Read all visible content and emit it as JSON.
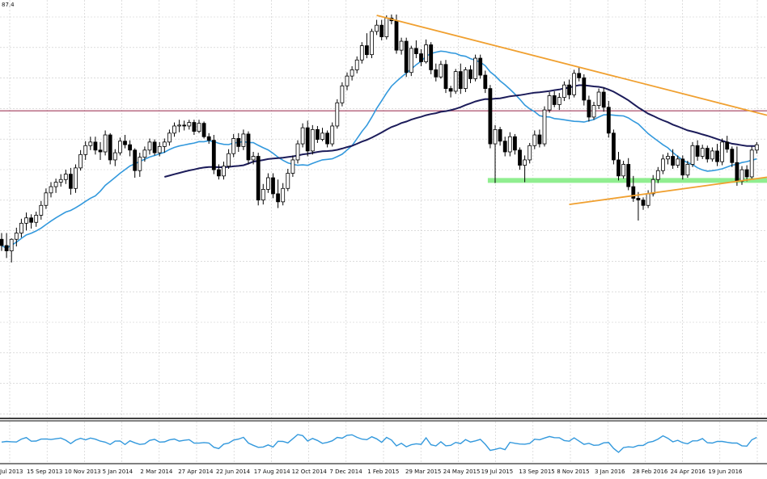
{
  "chart_data": {
    "type": "candlestick",
    "timeframe": "weekly",
    "header_label": "87.4",
    "x_tick_labels": [
      "Jul 2013",
      "15 Sep 2013",
      "10 Nov 2013",
      "5 Jan 2014",
      "2 Mar 2014",
      "27 Apr 2014",
      "22 Jun 2014",
      "17 Aug 2014",
      "12 Oct 2014",
      "7 Dec 2014",
      "1 Feb 2015",
      "29 Mar 2015",
      "24 May 2015",
      "19 Jul 2015",
      "13 Sep 2015",
      "8 Nov 2015",
      "3 Jan 2016",
      "28 Feb 2016",
      "24 Apr 2016",
      "19 Jun 2016"
    ],
    "ylim": [
      56,
      102
    ],
    "grid": true,
    "candles": [
      [
        75.9,
        76.6,
        74.6,
        75.2
      ],
      [
        75.2,
        76.6,
        73.8,
        74.6
      ],
      [
        74.6,
        76.0,
        73.3,
        75.9
      ],
      [
        75.9,
        77.2,
        75.1,
        76.6
      ],
      [
        76.6,
        78.2,
        76.1,
        77.7
      ],
      [
        77.7,
        78.9,
        76.9,
        78.3
      ],
      [
        78.3,
        78.7,
        77.1,
        77.8
      ],
      [
        77.8,
        79.0,
        77.3,
        78.6
      ],
      [
        78.6,
        80.2,
        78.1,
        79.7
      ],
      [
        79.7,
        81.6,
        79.3,
        81.1
      ],
      [
        81.1,
        82.3,
        80.6,
        81.8
      ],
      [
        81.8,
        82.7,
        81.1,
        82.3
      ],
      [
        82.3,
        83.2,
        81.8,
        82.6
      ],
      [
        82.6,
        83.7,
        82.1,
        83.2
      ],
      [
        83.2,
        83.9,
        80.9,
        81.6
      ],
      [
        81.6,
        84.3,
        81.1,
        83.9
      ],
      [
        83.9,
        85.9,
        83.6,
        85.4
      ],
      [
        85.4,
        86.9,
        84.8,
        86.4
      ],
      [
        86.4,
        87.4,
        85.9,
        86.8
      ],
      [
        86.8,
        87.4,
        85.4,
        85.9
      ],
      [
        85.9,
        86.8,
        84.8,
        85.7
      ],
      [
        85.7,
        88.1,
        85.3,
        87.6
      ],
      [
        87.6,
        87.8,
        84.3,
        84.8
      ],
      [
        84.8,
        86.0,
        84.1,
        85.6
      ],
      [
        85.6,
        87.3,
        85.3,
        86.9
      ],
      [
        86.9,
        87.6,
        86.1,
        86.5
      ],
      [
        86.5,
        87.0,
        85.2,
        85.9
      ],
      [
        85.9,
        86.1,
        82.8,
        83.6
      ],
      [
        83.6,
        85.6,
        82.9,
        85.1
      ],
      [
        85.1,
        86.3,
        84.6,
        85.9
      ],
      [
        85.9,
        87.2,
        85.4,
        86.8
      ],
      [
        86.8,
        87.1,
        85.3,
        85.6
      ],
      [
        85.6,
        86.8,
        85.2,
        86.3
      ],
      [
        86.3,
        87.2,
        85.6,
        86.8
      ],
      [
        86.8,
        88.2,
        86.4,
        87.8
      ],
      [
        87.8,
        89.0,
        87.4,
        88.6
      ],
      [
        88.6,
        89.3,
        87.9,
        88.7
      ],
      [
        88.7,
        89.2,
        88.1,
        88.6
      ],
      [
        88.6,
        89.3,
        88.2,
        89.0
      ],
      [
        89.0,
        89.3,
        87.6,
        88.0
      ],
      [
        88.0,
        89.3,
        87.8,
        88.9
      ],
      [
        88.9,
        89.1,
        87.2,
        87.4
      ],
      [
        87.4,
        87.8,
        86.6,
        87.0
      ],
      [
        87.0,
        87.6,
        83.2,
        83.7
      ],
      [
        83.7,
        84.3,
        82.6,
        83.0
      ],
      [
        83.0,
        84.6,
        82.6,
        84.1
      ],
      [
        84.1,
        86.0,
        83.8,
        85.5
      ],
      [
        85.5,
        87.7,
        85.1,
        87.2
      ],
      [
        87.2,
        87.8,
        85.7,
        86.3
      ],
      [
        86.3,
        88.2,
        85.9,
        87.7
      ],
      [
        87.7,
        88.0,
        84.3,
        84.8
      ],
      [
        84.8,
        85.7,
        84.3,
        85.2
      ],
      [
        85.2,
        85.6,
        79.7,
        80.3
      ],
      [
        80.3,
        82.1,
        79.8,
        81.5
      ],
      [
        81.5,
        83.3,
        81.1,
        82.8
      ],
      [
        82.8,
        83.3,
        80.5,
        81.0
      ],
      [
        81.0,
        82.6,
        79.4,
        80.1
      ],
      [
        80.1,
        82.2,
        79.7,
        81.6
      ],
      [
        81.6,
        83.8,
        81.3,
        83.3
      ],
      [
        83.3,
        85.3,
        82.9,
        84.8
      ],
      [
        84.8,
        87.0,
        84.4,
        86.6
      ],
      [
        86.6,
        88.9,
        86.2,
        88.4
      ],
      [
        88.4,
        89.2,
        85.2,
        85.8
      ],
      [
        85.8,
        88.7,
        85.4,
        88.2
      ],
      [
        88.2,
        88.6,
        86.7,
        87.1
      ],
      [
        87.1,
        88.4,
        86.9,
        87.8
      ],
      [
        87.8,
        88.1,
        86.2,
        86.6
      ],
      [
        86.6,
        89.0,
        86.3,
        88.6
      ],
      [
        88.6,
        91.6,
        88.3,
        91.2
      ],
      [
        91.2,
        93.5,
        90.8,
        93.1
      ],
      [
        93.1,
        94.6,
        92.6,
        94.2
      ],
      [
        94.2,
        95.3,
        93.7,
        94.9
      ],
      [
        94.9,
        96.4,
        94.5,
        96.0
      ],
      [
        96.0,
        98.0,
        95.6,
        97.6
      ],
      [
        97.6,
        99.0,
        96.2,
        96.6
      ],
      [
        96.6,
        99.5,
        96.2,
        99.2
      ],
      [
        99.2,
        100.5,
        98.8,
        99.9
      ],
      [
        99.9,
        100.5,
        98.2,
        98.6
      ],
      [
        98.6,
        101.0,
        98.3,
        100.7
      ],
      [
        100.7,
        101.1,
        100.0,
        100.4
      ],
      [
        100.4,
        101.1,
        96.7,
        97.1
      ],
      [
        97.1,
        98.5,
        96.6,
        98.1
      ],
      [
        98.1,
        98.5,
        94.1,
        94.6
      ],
      [
        94.6,
        97.6,
        94.2,
        97.3
      ],
      [
        97.3,
        98.2,
        96.2,
        96.7
      ],
      [
        96.7,
        97.2,
        95.3,
        95.8
      ],
      [
        95.8,
        98.3,
        95.6,
        97.7
      ],
      [
        97.7,
        98.0,
        94.4,
        94.9
      ],
      [
        94.9,
        95.6,
        93.6,
        94.1
      ],
      [
        94.1,
        95.9,
        93.9,
        95.5
      ],
      [
        95.5,
        96.0,
        92.3,
        92.8
      ],
      [
        92.8,
        93.1,
        91.8,
        92.5
      ],
      [
        92.5,
        95.0,
        92.2,
        94.7
      ],
      [
        94.7,
        95.6,
        92.2,
        92.8
      ],
      [
        92.8,
        95.2,
        92.4,
        94.9
      ],
      [
        94.9,
        95.4,
        93.4,
        93.9
      ],
      [
        93.9,
        96.6,
        93.6,
        96.2
      ],
      [
        96.2,
        96.6,
        93.9,
        94.3
      ],
      [
        94.3,
        94.8,
        92.3,
        92.8
      ],
      [
        92.8,
        93.2,
        86.1,
        86.6
      ],
      [
        86.6,
        88.7,
        82.2,
        88.2
      ],
      [
        88.2,
        88.5,
        86.4,
        86.9
      ],
      [
        86.9,
        87.4,
        85.2,
        85.7
      ],
      [
        85.7,
        87.9,
        85.2,
        87.4
      ],
      [
        87.4,
        87.7,
        85.4,
        85.9
      ],
      [
        85.9,
        86.2,
        83.7,
        84.2
      ],
      [
        84.2,
        85.3,
        82.3,
        84.8
      ],
      [
        84.8,
        86.7,
        84.4,
        86.4
      ],
      [
        86.4,
        88.1,
        86.0,
        87.6
      ],
      [
        87.6,
        88.2,
        86.2,
        86.6
      ],
      [
        86.6,
        90.8,
        86.3,
        90.4
      ],
      [
        90.4,
        92.4,
        90.1,
        92.0
      ],
      [
        92.0,
        92.5,
        90.7,
        91.0
      ],
      [
        91.0,
        92.3,
        90.4,
        91.8
      ],
      [
        91.8,
        93.6,
        91.4,
        93.2
      ],
      [
        93.2,
        93.8,
        91.6,
        92.1
      ],
      [
        92.1,
        94.9,
        91.8,
        94.5
      ],
      [
        94.5,
        95.2,
        93.6,
        94.0
      ],
      [
        94.0,
        94.4,
        90.9,
        91.5
      ],
      [
        91.5,
        92.0,
        89.1,
        89.6
      ],
      [
        89.6,
        91.3,
        89.3,
        90.9
      ],
      [
        90.9,
        92.8,
        90.5,
        92.4
      ],
      [
        92.4,
        92.9,
        90.2,
        90.7
      ],
      [
        90.7,
        91.4,
        87.3,
        87.8
      ],
      [
        87.8,
        88.2,
        84.3,
        84.8
      ],
      [
        84.8,
        85.7,
        82.5,
        83.0
      ],
      [
        83.0,
        84.7,
        82.7,
        84.3
      ],
      [
        84.3,
        85.0,
        81.4,
        81.8
      ],
      [
        81.8,
        83.0,
        80.1,
        80.5
      ],
      [
        80.5,
        81.2,
        78.0,
        80.3
      ],
      [
        80.3,
        80.6,
        79.2,
        79.7
      ],
      [
        79.7,
        81.4,
        79.4,
        81.0
      ],
      [
        81.0,
        83.1,
        80.7,
        82.6
      ],
      [
        82.6,
        84.0,
        82.2,
        83.6
      ],
      [
        83.6,
        85.4,
        83.2,
        84.9
      ],
      [
        84.9,
        85.6,
        84.3,
        85.2
      ],
      [
        85.2,
        86.0,
        83.8,
        84.2
      ],
      [
        84.2,
        85.3,
        83.9,
        84.9
      ],
      [
        84.9,
        85.3,
        82.6,
        83.1
      ],
      [
        83.1,
        84.7,
        82.8,
        84.3
      ],
      [
        84.3,
        86.8,
        84.0,
        86.4
      ],
      [
        86.4,
        87.0,
        84.7,
        85.2
      ],
      [
        85.2,
        86.5,
        84.9,
        86.1
      ],
      [
        86.1,
        86.4,
        84.5,
        84.9
      ],
      [
        84.9,
        86.2,
        84.6,
        85.8
      ],
      [
        85.8,
        86.6,
        84.1,
        84.6
      ],
      [
        84.6,
        87.2,
        84.2,
        86.8
      ],
      [
        86.8,
        87.5,
        85.6,
        86.0
      ],
      [
        86.0,
        86.3,
        84.0,
        84.5
      ],
      [
        84.5,
        86.3,
        81.9,
        82.4
      ],
      [
        82.4,
        84.1,
        82.0,
        83.7
      ],
      [
        83.7,
        84.2,
        82.4,
        82.9
      ],
      [
        82.9,
        86.3,
        82.6,
        85.9
      ],
      [
        85.9,
        86.8,
        85.5,
        86.5
      ]
    ],
    "horizontal_lines": [
      {
        "y": 90.3,
        "color": "#a03a5a"
      },
      {
        "y": 82.5,
        "color": "#90ee90",
        "thick": true,
        "x_from_candle": 99
      }
    ],
    "trendlines": [
      {
        "from": [
          76,
          101.0
        ],
        "to": [
          153,
          90.1
        ],
        "color": "#f0a030"
      },
      {
        "from": [
          115,
          79.8
        ],
        "to": [
          153,
          82.7
        ],
        "color": "#f0a030"
      }
    ],
    "moving_averages": [
      {
        "period": 20,
        "color": "#3399dd"
      },
      {
        "period": 50,
        "color": "#1c1c5a"
      }
    ],
    "oscillator": {
      "color": "#3399dd"
    },
    "colors": {
      "bull_body": "#ffffff",
      "bear_body": "#000000",
      "wick": "#000000",
      "grid": "#c8c8c8",
      "panel_border": "#000000"
    }
  }
}
